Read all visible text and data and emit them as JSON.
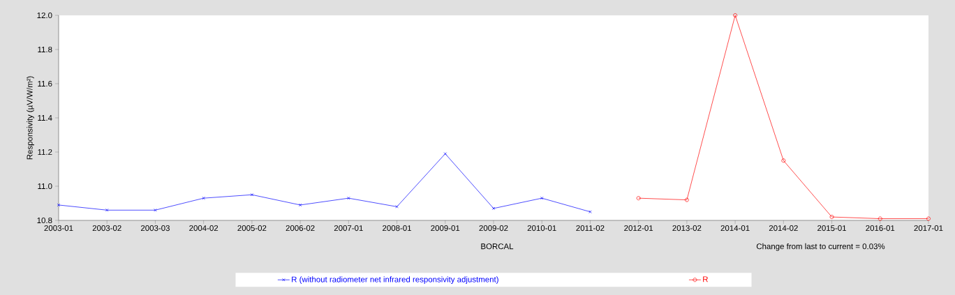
{
  "chart_data": {
    "type": "line",
    "xlabel": "BORCAL",
    "ylabel": "Responsivity (µV/W/m²)",
    "categories": [
      "2003-01",
      "2003-02",
      "2003-03",
      "2004-02",
      "2005-02",
      "2006-02",
      "2007-01",
      "2008-01",
      "2009-01",
      "2009-02",
      "2010-01",
      "2011-02",
      "2012-01",
      "2013-02",
      "2014-01",
      "2014-02",
      "2015-01",
      "2016-01",
      "2017-01"
    ],
    "series": [
      {
        "name": "R (without radiometer net infrared responsivity adjustment)",
        "color": "#0000ff",
        "marker": "cross",
        "values": [
          10.89,
          10.86,
          10.86,
          10.93,
          10.95,
          10.89,
          10.93,
          10.88,
          11.19,
          10.87,
          10.93,
          10.85,
          null,
          null,
          null,
          null,
          null,
          null,
          null
        ]
      },
      {
        "name": "R",
        "color": "#ff0000",
        "marker": "circle",
        "values": [
          null,
          null,
          null,
          null,
          null,
          null,
          null,
          null,
          null,
          null,
          null,
          null,
          10.93,
          10.92,
          12.0,
          11.15,
          10.82,
          10.81,
          10.81
        ]
      }
    ],
    "ylim": [
      10.8,
      12.0
    ],
    "yticks": [
      {
        "value": 10.8,
        "label": "10.8"
      },
      {
        "value": 11.0,
        "label": "11.0"
      },
      {
        "value": 11.2,
        "label": "11.2"
      },
      {
        "value": 11.4,
        "label": "11.4"
      },
      {
        "value": 11.6,
        "label": "11.6"
      },
      {
        "value": 11.8,
        "label": "11.8"
      },
      {
        "value": 12.0,
        "label": "12.0"
      }
    ],
    "annotations": [
      "Change from last to current = 0.03%"
    ],
    "legend": "bottom",
    "grid": false,
    "line_style": "solid"
  }
}
